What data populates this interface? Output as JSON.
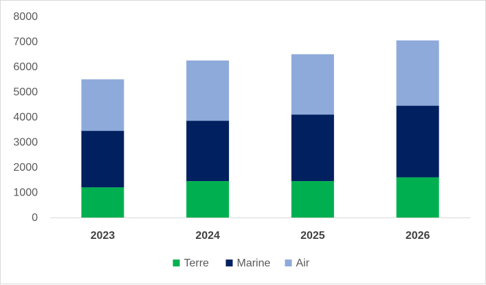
{
  "chart_data": {
    "type": "bar",
    "stacked": true,
    "title": "",
    "xlabel": "",
    "ylabel": "",
    "categories": [
      "2023",
      "2024",
      "2025",
      "2026"
    ],
    "series": [
      {
        "name": "Terre",
        "color": "#00b050",
        "values": [
          1200,
          1450,
          1450,
          1600
        ]
      },
      {
        "name": "Marine",
        "color": "#002060",
        "values": [
          2250,
          2400,
          2650,
          2850
        ]
      },
      {
        "name": "Air",
        "color": "#8eaadb",
        "values": [
          2050,
          2400,
          2400,
          2600
        ]
      }
    ],
    "ylim": [
      0,
      8000
    ],
    "yticks": [
      "0",
      "1000",
      "2000",
      "3000",
      "4000",
      "5000",
      "6000",
      "7000",
      "8000"
    ],
    "grid": false,
    "legend_position": "bottom"
  }
}
